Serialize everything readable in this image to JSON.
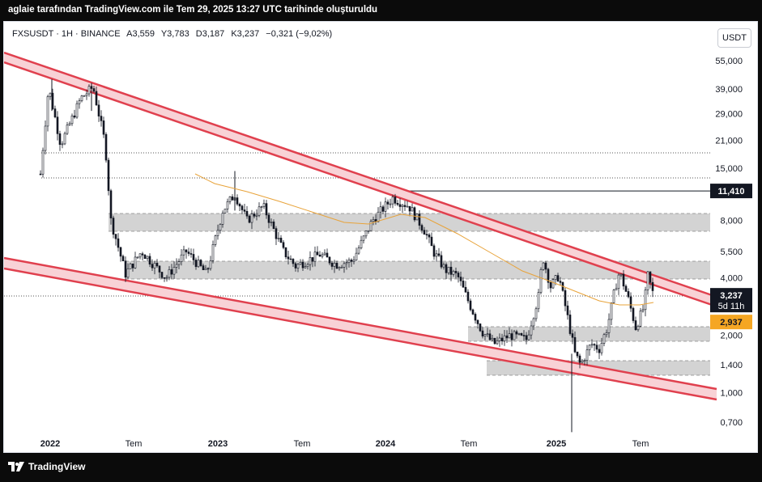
{
  "header": {
    "caption": "aglaie tarafından TradingView.com ile Tem 29, 2025 13:27 UTC tarihinde oluşturuldu"
  },
  "legend": {
    "symbol": "FXSUSDT · 1H · BINANCE",
    "open": "A3,559",
    "high": "Y3,783",
    "low": "D3,187",
    "close": "K3,237",
    "change": "−0,321 (−9,02%)"
  },
  "currency_button": "USDT",
  "footer": {
    "brand": "TradingView",
    "logo_icon": "tradingview-logo-icon"
  },
  "chart_data": {
    "type": "candlestick",
    "y_scale": "log",
    "ylim": [
      0.6,
      70
    ],
    "y_ticks": [
      "55,000",
      "39,000",
      "29,000",
      "21,000",
      "15,000",
      "8,000",
      "5,500",
      "4,000",
      "2,000",
      "1,400",
      "1,000",
      "0,700"
    ],
    "y_tick_values": [
      55,
      39,
      29,
      21,
      15,
      8,
      5.5,
      4,
      2,
      1.4,
      1,
      0.7
    ],
    "x_ticks": [
      "2022",
      "Tem",
      "2023",
      "Tem",
      "2024",
      "Tem",
      "2025",
      "Tem"
    ],
    "x_tick_bold": [
      true,
      false,
      true,
      false,
      true,
      false,
      true,
      false
    ],
    "markers": {
      "last_price": {
        "label": "3,237",
        "sub": "5d 11h",
        "value": 3.237,
        "color": "#131722"
      },
      "level": {
        "label": "11,410",
        "value": 11.41,
        "color": "#131722"
      },
      "ma": {
        "label": "2,937",
        "value": 2.937,
        "color": "#f5a623"
      }
    },
    "colors": {
      "channel": "#e0404e",
      "channel_fill": "#f8d2d6",
      "zone": "#c8c8c8",
      "ma": "#e8a33a",
      "candle": "#131722"
    }
  }
}
